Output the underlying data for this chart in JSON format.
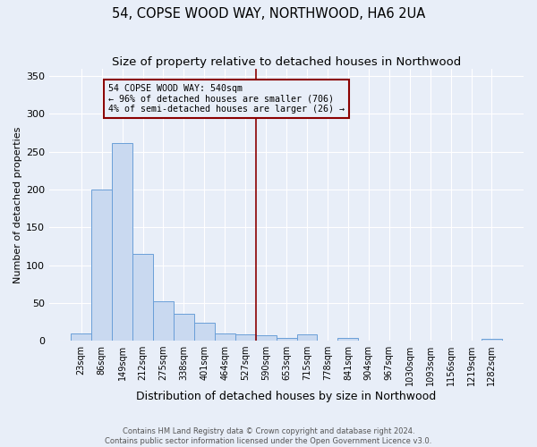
{
  "title": "54, COPSE WOOD WAY, NORTHWOOD, HA6 2UA",
  "subtitle": "Size of property relative to detached houses in Northwood",
  "xlabel": "Distribution of detached houses by size in Northwood",
  "ylabel": "Number of detached properties",
  "bar_labels": [
    "23sqm",
    "86sqm",
    "149sqm",
    "212sqm",
    "275sqm",
    "338sqm",
    "401sqm",
    "464sqm",
    "527sqm",
    "590sqm",
    "653sqm",
    "715sqm",
    "778sqm",
    "841sqm",
    "904sqm",
    "967sqm",
    "1030sqm",
    "1093sqm",
    "1156sqm",
    "1219sqm",
    "1282sqm"
  ],
  "bar_values": [
    10,
    200,
    262,
    115,
    52,
    35,
    24,
    9,
    8,
    7,
    4,
    8,
    0,
    4,
    0,
    0,
    0,
    0,
    0,
    0,
    3
  ],
  "bar_color": "#c9d9f0",
  "bar_edge_color": "#6a9fd8",
  "vline_x": 8.5,
  "vline_color": "#8b0000",
  "annotation_text": "54 COPSE WOOD WAY: 540sqm\n← 96% of detached houses are smaller (706)\n4% of semi-detached houses are larger (26) →",
  "annotation_box_color": "#8b0000",
  "bg_color": "#e8eef8",
  "grid_color": "#ffffff",
  "title_fontsize": 10.5,
  "subtitle_fontsize": 9.5,
  "xlabel_fontsize": 9,
  "ylabel_fontsize": 8,
  "footer_text": "Contains HM Land Registry data © Crown copyright and database right 2024.\nContains public sector information licensed under the Open Government Licence v3.0.",
  "ylim": [
    0,
    360
  ],
  "yticks": [
    0,
    50,
    100,
    150,
    200,
    250,
    300,
    350
  ]
}
